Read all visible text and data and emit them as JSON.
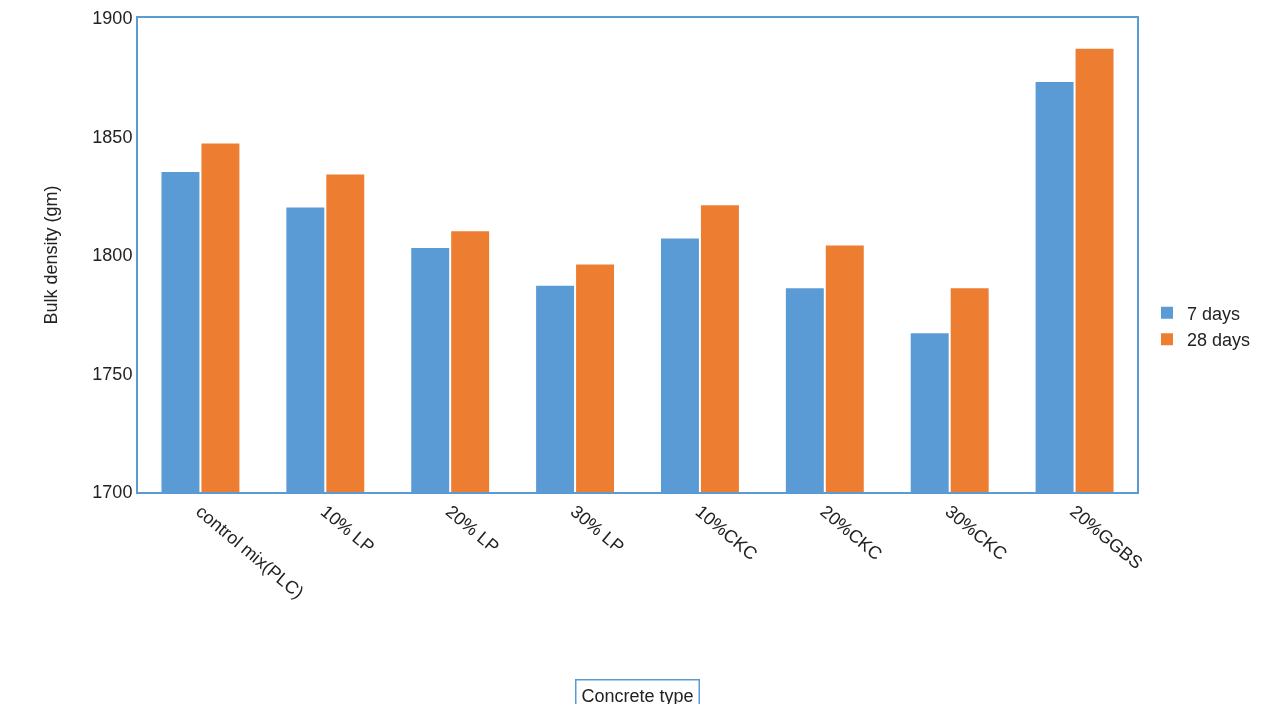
{
  "chart_data": {
    "type": "bar",
    "xlabel": "Concrete type",
    "ylabel": "Bulk density (gm)",
    "categories": [
      "control mix(PLC)",
      "10% LP",
      "20% LP",
      "30% LP",
      "10%CKC",
      "20%CKC",
      "30%CKC",
      "20%GGBS"
    ],
    "series": [
      {
        "name": "7 days",
        "color": "#5b9bd5",
        "values": [
          1835,
          1820,
          1803,
          1787,
          1807,
          1786,
          1767,
          1873
        ]
      },
      {
        "name": "28 days",
        "color": "#ed7d31",
        "values": [
          1847,
          1834,
          1810,
          1796,
          1821,
          1804,
          1786,
          1887
        ]
      }
    ],
    "ylim": [
      1700,
      1900
    ],
    "yticks": [
      1700,
      1750,
      1800,
      1850,
      1900
    ],
    "grid": false,
    "legend": "right"
  }
}
